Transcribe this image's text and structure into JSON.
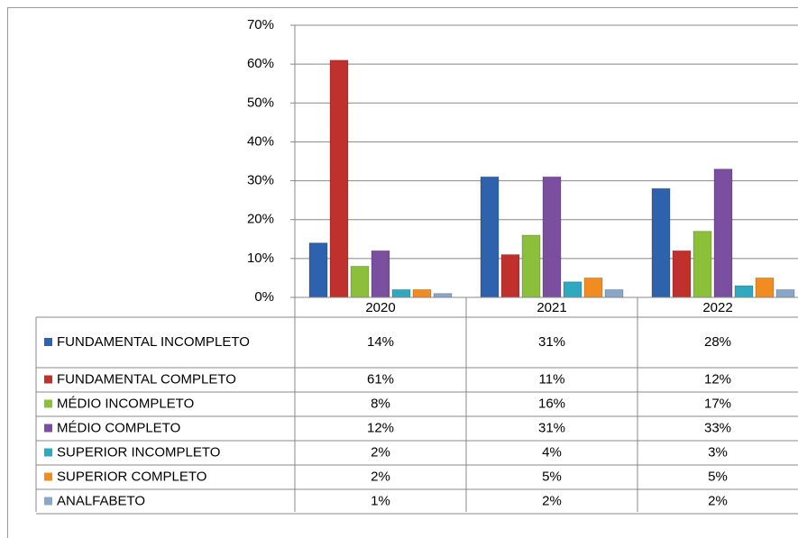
{
  "chart_data": {
    "type": "bar",
    "categories": [
      "2020",
      "2021",
      "2022"
    ],
    "series": [
      {
        "name": "FUNDAMENTAL INCOMPLETO",
        "color": "#2e62ad",
        "values": [
          14,
          31,
          28
        ],
        "value_labels": [
          "14%",
          "31%",
          "28%"
        ]
      },
      {
        "name": "FUNDAMENTAL COMPLETO",
        "color": "#c0302c",
        "values": [
          61,
          11,
          12
        ],
        "value_labels": [
          "61%",
          "11%",
          "12%"
        ]
      },
      {
        "name": "MÉDIO INCOMPLETO",
        "color": "#8cbf3a",
        "values": [
          8,
          16,
          17
        ],
        "value_labels": [
          "8%",
          "16%",
          "17%"
        ]
      },
      {
        "name": "MÉDIO COMPLETO",
        "color": "#7b4fa0",
        "values": [
          12,
          31,
          33
        ],
        "value_labels": [
          "12%",
          "31%",
          "33%"
        ]
      },
      {
        "name": "SUPERIOR INCOMPLETO",
        "color": "#2fa8c0",
        "values": [
          2,
          4,
          3
        ],
        "value_labels": [
          "2%",
          "4%",
          "3%"
        ]
      },
      {
        "name": "SUPERIOR COMPLETO",
        "color": "#f08c20",
        "values": [
          2,
          5,
          5
        ],
        "value_labels": [
          "2%",
          "5%",
          "5%"
        ]
      },
      {
        "name": "ANALFABETO",
        "color": "#8aa6c8",
        "values": [
          1,
          2,
          2
        ],
        "value_labels": [
          "1%",
          "2%",
          "2%"
        ]
      }
    ],
    "ylim": [
      0,
      70
    ],
    "yticks": [
      {
        "value": 0,
        "label": "0%"
      },
      {
        "value": 10,
        "label": "10%"
      },
      {
        "value": 20,
        "label": "20%"
      },
      {
        "value": 30,
        "label": "30%"
      },
      {
        "value": 40,
        "label": "40%"
      },
      {
        "value": 50,
        "label": "50%"
      },
      {
        "value": 60,
        "label": "60%"
      },
      {
        "value": 70,
        "label": "70%"
      }
    ],
    "grid": true
  }
}
